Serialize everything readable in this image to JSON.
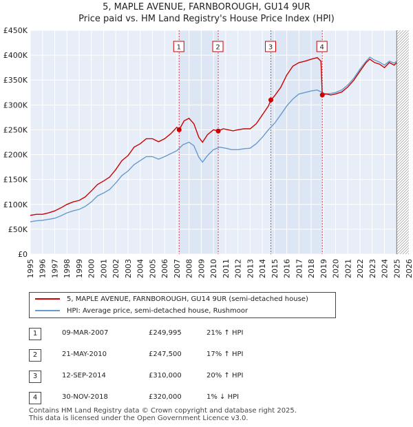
{
  "chart_data": {
    "type": "line",
    "title": "5, MAPLE AVENUE, FARNBOROUGH, GU14 9UR",
    "subtitle": "Price paid vs. HM Land Registry's House Price Index (HPI)",
    "xlim": [
      1995,
      2026
    ],
    "ylim": [
      0,
      450000
    ],
    "y_ticks": [
      {
        "value": 0,
        "label": "£0"
      },
      {
        "value": 50000,
        "label": "£50K"
      },
      {
        "value": 100000,
        "label": "£100K"
      },
      {
        "value": 150000,
        "label": "£150K"
      },
      {
        "value": 200000,
        "label": "£200K"
      },
      {
        "value": 250000,
        "label": "£250K"
      },
      {
        "value": 300000,
        "label": "£300K"
      },
      {
        "value": 350000,
        "label": "£350K"
      },
      {
        "value": 400000,
        "label": "£400K"
      },
      {
        "value": 450000,
        "label": "£450K"
      }
    ],
    "x_ticks": [
      "1995",
      "1996",
      "1997",
      "1998",
      "1999",
      "2000",
      "2001",
      "2002",
      "2003",
      "2004",
      "2005",
      "2006",
      "2007",
      "2008",
      "2009",
      "2010",
      "2011",
      "2012",
      "2013",
      "2014",
      "2015",
      "2016",
      "2017",
      "2018",
      "2019",
      "2020",
      "2021",
      "2022",
      "2023",
      "2024",
      "2025",
      "2026"
    ],
    "series": [
      {
        "name": "5, MAPLE AVENUE, FARNBOROUGH, GU14 9UR (semi-detached house)",
        "color": "#cc0000",
        "points": [
          [
            1995.0,
            78000
          ],
          [
            1995.5,
            80000
          ],
          [
            1996.0,
            80000
          ],
          [
            1996.5,
            83000
          ],
          [
            1997.0,
            87000
          ],
          [
            1997.5,
            93000
          ],
          [
            1998.0,
            100000
          ],
          [
            1998.5,
            105000
          ],
          [
            1999.0,
            108000
          ],
          [
            1999.5,
            115000
          ],
          [
            2000.0,
            127000
          ],
          [
            2000.5,
            140000
          ],
          [
            2001.0,
            147000
          ],
          [
            2001.5,
            155000
          ],
          [
            2002.0,
            170000
          ],
          [
            2002.5,
            188000
          ],
          [
            2003.0,
            198000
          ],
          [
            2003.5,
            215000
          ],
          [
            2004.0,
            222000
          ],
          [
            2004.5,
            232000
          ],
          [
            2005.0,
            232000
          ],
          [
            2005.5,
            226000
          ],
          [
            2006.0,
            232000
          ],
          [
            2006.5,
            242000
          ],
          [
            2007.0,
            255000
          ],
          [
            2007.19,
            249995
          ],
          [
            2007.6,
            268000
          ],
          [
            2008.0,
            273000
          ],
          [
            2008.4,
            262000
          ],
          [
            2008.8,
            235000
          ],
          [
            2009.1,
            225000
          ],
          [
            2009.5,
            240000
          ],
          [
            2010.0,
            250000
          ],
          [
            2010.39,
            247500
          ],
          [
            2010.8,
            252000
          ],
          [
            2011.2,
            250000
          ],
          [
            2011.6,
            248000
          ],
          [
            2012.0,
            250000
          ],
          [
            2012.5,
            252000
          ],
          [
            2013.0,
            252000
          ],
          [
            2013.5,
            262000
          ],
          [
            2014.0,
            280000
          ],
          [
            2014.5,
            298000
          ],
          [
            2014.7,
            310000
          ],
          [
            2015.0,
            318000
          ],
          [
            2015.5,
            335000
          ],
          [
            2016.0,
            360000
          ],
          [
            2016.5,
            378000
          ],
          [
            2017.0,
            385000
          ],
          [
            2017.5,
            388000
          ],
          [
            2018.0,
            392000
          ],
          [
            2018.5,
            395000
          ],
          [
            2018.8,
            388000
          ],
          [
            2018.91,
            320000
          ],
          [
            2019.2,
            322000
          ],
          [
            2019.6,
            320000
          ],
          [
            2020.0,
            322000
          ],
          [
            2020.5,
            326000
          ],
          [
            2021.0,
            336000
          ],
          [
            2021.5,
            350000
          ],
          [
            2022.0,
            368000
          ],
          [
            2022.5,
            385000
          ],
          [
            2022.8,
            392000
          ],
          [
            2023.2,
            385000
          ],
          [
            2023.6,
            382000
          ],
          [
            2024.0,
            375000
          ],
          [
            2024.4,
            385000
          ],
          [
            2024.8,
            380000
          ],
          [
            2025.0,
            385000
          ]
        ]
      },
      {
        "name": "HPI: Average price, semi-detached house, Rushmoor",
        "color": "#6699cc",
        "points": [
          [
            1995.0,
            65000
          ],
          [
            1995.5,
            67000
          ],
          [
            1996.0,
            68000
          ],
          [
            1996.5,
            70000
          ],
          [
            1997.0,
            72000
          ],
          [
            1997.5,
            77000
          ],
          [
            1998.0,
            83000
          ],
          [
            1998.5,
            87000
          ],
          [
            1999.0,
            90000
          ],
          [
            1999.5,
            96000
          ],
          [
            2000.0,
            105000
          ],
          [
            2000.5,
            117000
          ],
          [
            2001.0,
            123000
          ],
          [
            2001.5,
            130000
          ],
          [
            2002.0,
            143000
          ],
          [
            2002.5,
            158000
          ],
          [
            2003.0,
            167000
          ],
          [
            2003.5,
            180000
          ],
          [
            2004.0,
            188000
          ],
          [
            2004.5,
            196000
          ],
          [
            2005.0,
            196000
          ],
          [
            2005.5,
            191000
          ],
          [
            2006.0,
            196000
          ],
          [
            2006.5,
            202000
          ],
          [
            2007.0,
            208000
          ],
          [
            2007.5,
            220000
          ],
          [
            2008.0,
            225000
          ],
          [
            2008.4,
            218000
          ],
          [
            2008.8,
            195000
          ],
          [
            2009.1,
            185000
          ],
          [
            2009.5,
            198000
          ],
          [
            2010.0,
            210000
          ],
          [
            2010.5,
            215000
          ],
          [
            2011.0,
            213000
          ],
          [
            2011.5,
            210000
          ],
          [
            2012.0,
            210000
          ],
          [
            2012.5,
            212000
          ],
          [
            2013.0,
            213000
          ],
          [
            2013.5,
            222000
          ],
          [
            2014.0,
            235000
          ],
          [
            2014.5,
            250000
          ],
          [
            2015.0,
            263000
          ],
          [
            2015.5,
            280000
          ],
          [
            2016.0,
            298000
          ],
          [
            2016.5,
            312000
          ],
          [
            2017.0,
            322000
          ],
          [
            2017.5,
            325000
          ],
          [
            2018.0,
            328000
          ],
          [
            2018.5,
            330000
          ],
          [
            2018.9,
            325000
          ],
          [
            2019.2,
            322000
          ],
          [
            2019.6,
            323000
          ],
          [
            2020.0,
            325000
          ],
          [
            2020.5,
            330000
          ],
          [
            2021.0,
            340000
          ],
          [
            2021.5,
            354000
          ],
          [
            2022.0,
            372000
          ],
          [
            2022.5,
            388000
          ],
          [
            2022.8,
            396000
          ],
          [
            2023.2,
            390000
          ],
          [
            2023.6,
            386000
          ],
          [
            2024.0,
            380000
          ],
          [
            2024.4,
            388000
          ],
          [
            2024.8,
            384000
          ],
          [
            2025.0,
            388000
          ]
        ]
      }
    ],
    "sales": [
      {
        "num": "1",
        "x": 2007.19,
        "value": 249995,
        "date": "09-MAR-2007",
        "price": "£249,995",
        "hpi": "21% ↑ HPI"
      },
      {
        "num": "2",
        "x": 2010.39,
        "value": 247500,
        "date": "21-MAY-2010",
        "price": "£247,500",
        "hpi": "17% ↑ HPI"
      },
      {
        "num": "3",
        "x": 2014.7,
        "value": 310000,
        "date": "12-SEP-2014",
        "price": "£310,000",
        "hpi": "20% ↑ HPI"
      },
      {
        "num": "4",
        "x": 2018.91,
        "value": 320000,
        "date": "30-NOV-2018",
        "price": "£320,000",
        "hpi": "1% ↓ HPI"
      }
    ],
    "shaded_ranges": [
      [
        2007.19,
        2010.39
      ],
      [
        2014.7,
        2018.91
      ]
    ],
    "future_hatch_from": 2025.0,
    "background": "#e8eef7",
    "shade_color": "#dde6f5"
  },
  "legend": {
    "property_label": "5, MAPLE AVENUE, FARNBOROUGH, GU14 9UR (semi-detached house)",
    "hpi_label": "HPI: Average price, semi-detached house, Rushmoor"
  },
  "footer": {
    "line1": "Contains HM Land Registry data © Crown copyright and database right 2025.",
    "line2": "This data is licensed under the Open Government Licence v3.0."
  }
}
